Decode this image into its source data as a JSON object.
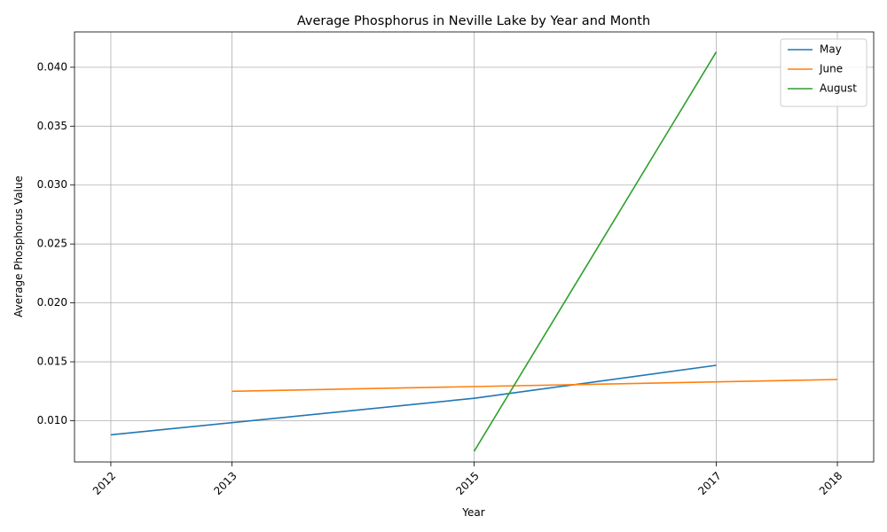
{
  "chart_data": {
    "type": "line",
    "title": "Average Phosphorus in Neville Lake by Year and Month",
    "xlabel": "Year",
    "ylabel": "Average Phosphorus Value",
    "xlim": [
      2011.7,
      2018.3
    ],
    "ylim": [
      0.0065,
      0.043
    ],
    "x_ticks": [
      2012,
      2013,
      2015,
      2017,
      2018
    ],
    "y_ticks": [
      "0.010",
      "0.015",
      "0.020",
      "0.025",
      "0.030",
      "0.035",
      "0.040"
    ],
    "grid": true,
    "legend_position": "top-right",
    "series": [
      {
        "name": "May",
        "color": "#1f77b4",
        "x": [
          2012,
          2015,
          2017
        ],
        "y": [
          0.0088,
          0.0119,
          0.0147
        ]
      },
      {
        "name": "June",
        "color": "#ff7f0e",
        "x": [
          2013,
          2018
        ],
        "y": [
          0.0125,
          0.0135
        ]
      },
      {
        "name": "August",
        "color": "#2ca02c",
        "x": [
          2015,
          2017
        ],
        "y": [
          0.0074,
          0.0413
        ]
      }
    ]
  }
}
